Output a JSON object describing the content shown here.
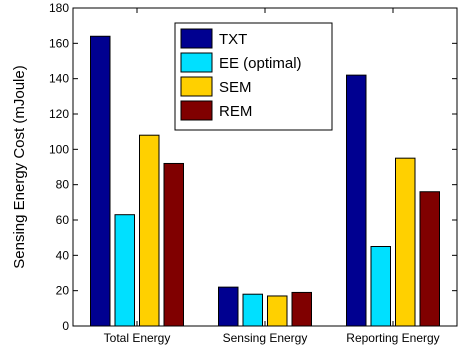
{
  "chart_data": {
    "type": "bar",
    "title": "",
    "xlabel": "",
    "ylabel": "Sensing Energy Cost (mJoule)",
    "ylim": [
      0,
      180
    ],
    "yticks": [
      0,
      20,
      40,
      60,
      80,
      100,
      120,
      140,
      160,
      180
    ],
    "grid": false,
    "legend_position": "top-center",
    "categories": [
      "Total Energy",
      "Sensing Energy",
      "Reporting Energy"
    ],
    "series": [
      {
        "name": "TXT",
        "color": "#000090",
        "values": [
          164,
          22,
          142
        ]
      },
      {
        "name": "EE (optimal)",
        "color": "#00e0ff",
        "values": [
          63,
          18,
          45
        ]
      },
      {
        "name": "SEM",
        "color": "#ffd000",
        "values": [
          108,
          17,
          95
        ]
      },
      {
        "name": "REM",
        "color": "#800000",
        "values": [
          92,
          19,
          76
        ]
      }
    ]
  }
}
